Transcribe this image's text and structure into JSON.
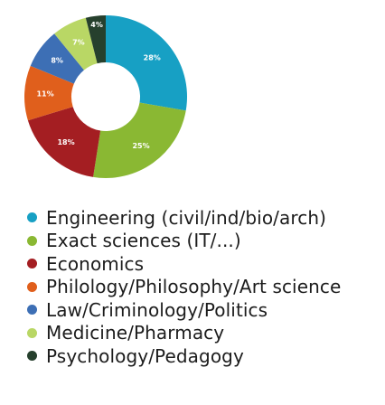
{
  "chart_data": {
    "type": "pie",
    "donut": true,
    "slices": [
      {
        "label": "Engineering (civil/ind/bio/arch)",
        "value": 28,
        "display": "28%",
        "color": "#17a0c4"
      },
      {
        "label": "Exact sciences (IT/...)",
        "value": 25,
        "display": "25%",
        "color": "#8ab833"
      },
      {
        "label": "Economics",
        "value": 18,
        "display": "18%",
        "color": "#a41e22"
      },
      {
        "label": "Philology/Philosophy/Art science",
        "value": 11,
        "display": "11%",
        "color": "#e05f1c"
      },
      {
        "label": "Law/Criminology/Politics",
        "value": 8,
        "display": "8%",
        "color": "#3d6fb5"
      },
      {
        "label": "Medicine/Pharmacy",
        "value": 7,
        "display": "7%",
        "color": "#b9d765"
      },
      {
        "label": "Psychology/Pedagogy",
        "value": 4,
        "display": "4%",
        "color": "#26402d"
      }
    ],
    "legend": {
      "placement": "bottom",
      "order": [
        "Engineering (civil/ind/bio/arch)",
        "Exact sciences (IT/...)",
        "Economics",
        "Philology/Philosophy/Art science",
        "Law/Criminology/Politics",
        "Medicine/Pharmacy",
        "Psychology/Pedagogy"
      ]
    }
  }
}
